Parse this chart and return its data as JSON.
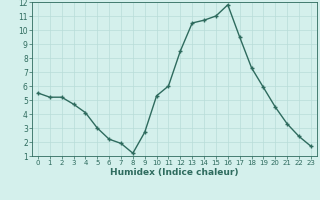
{
  "x": [
    0,
    1,
    2,
    3,
    4,
    5,
    6,
    7,
    8,
    9,
    10,
    11,
    12,
    13,
    14,
    15,
    16,
    17,
    18,
    19,
    20,
    21,
    22,
    23
  ],
  "y": [
    5.5,
    5.2,
    5.2,
    4.7,
    4.1,
    3.0,
    2.2,
    1.9,
    1.2,
    2.7,
    5.3,
    6.0,
    8.5,
    10.5,
    10.7,
    11.0,
    11.8,
    9.5,
    7.3,
    5.9,
    4.5,
    3.3,
    2.4,
    1.7
  ],
  "xlabel": "Humidex (Indice chaleur)",
  "line_color": "#2e6b5e",
  "bg_color": "#d4f0ec",
  "grid_color": "#b8ddd8",
  "xlim": [
    -0.5,
    23.5
  ],
  "ylim": [
    1,
    12
  ],
  "yticks": [
    1,
    2,
    3,
    4,
    5,
    6,
    7,
    8,
    9,
    10,
    11,
    12
  ],
  "xticks": [
    0,
    1,
    2,
    3,
    4,
    5,
    6,
    7,
    8,
    9,
    10,
    11,
    12,
    13,
    14,
    15,
    16,
    17,
    18,
    19,
    20,
    21,
    22,
    23
  ]
}
